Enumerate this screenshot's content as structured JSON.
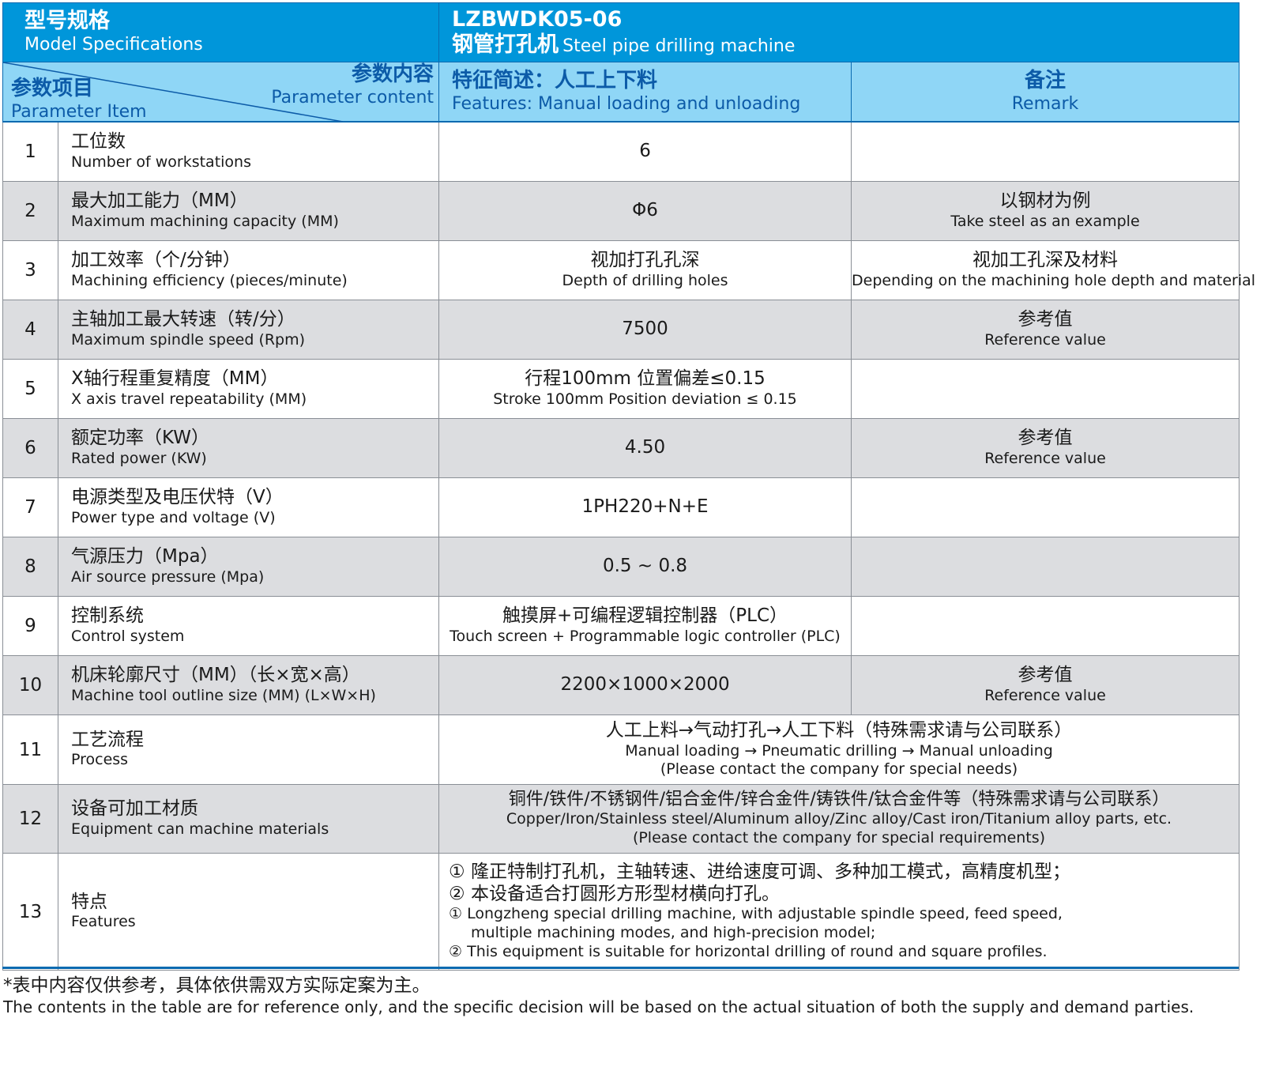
{
  "header": {
    "model_cn": "型号规格",
    "model_en": "Model Specifications",
    "code": "LZBWDK05-06",
    "name_cn": "钢管打孔机",
    "name_en": "Steel pipe drilling machine",
    "content_cn": "参数内容",
    "content_en": "Parameter content",
    "item_cn": "参数项目",
    "item_en": "Parameter Item",
    "features_cn": "特征简述：人工上下料",
    "features_en": "Features: Manual loading and unloading",
    "remark_cn": "备注",
    "remark_en": "Remark"
  },
  "rows": [
    {
      "no": "1",
      "cn": "工位数",
      "en": "Number of workstations",
      "value": "6",
      "value_en": "",
      "remark_cn": "",
      "remark_en": ""
    },
    {
      "no": "2",
      "cn": "最大加工能力（MM）",
      "en": "Maximum machining capacity (MM)",
      "value": "Φ6",
      "value_en": "",
      "remark_cn": "以钢材为例",
      "remark_en": "Take steel as an example"
    },
    {
      "no": "3",
      "cn": "加工效率（个/分钟）",
      "en": "Machining efficiency (pieces/minute)",
      "value": "视加打孔孔深",
      "value_en": "Depth of drilling holes",
      "remark_cn": "视加工孔深及材料",
      "remark_en": "Depending on the machining hole depth and material"
    },
    {
      "no": "4",
      "cn": "主轴加工最大转速（转/分）",
      "en": "Maximum spindle speed (Rpm)",
      "value": "7500",
      "value_en": "",
      "remark_cn": "参考值",
      "remark_en": "Reference value"
    },
    {
      "no": "5",
      "cn": "X轴行程重复精度（MM）",
      "en": "X axis travel repeatability (MM)",
      "value": "行程100mm 位置偏差≤0.15",
      "value_en": "Stroke 100mm Position deviation ≤ 0.15",
      "remark_cn": "",
      "remark_en": ""
    },
    {
      "no": "6",
      "cn": "额定功率（KW）",
      "en": "Rated power (KW)",
      "value": "4.50",
      "value_en": "",
      "remark_cn": "参考值",
      "remark_en": "Reference value"
    },
    {
      "no": "7",
      "cn": "电源类型及电压伏特（V）",
      "en": "Power type and voltage (V)",
      "value": "1PH220+N+E",
      "value_en": "",
      "remark_cn": "",
      "remark_en": ""
    },
    {
      "no": "8",
      "cn": "气源压力（Mpa）",
      "en": "Air source pressure (Mpa)",
      "value": "0.5 ~ 0.8",
      "value_en": "",
      "remark_cn": "",
      "remark_en": ""
    },
    {
      "no": "9",
      "cn": "控制系统",
      "en": "Control system",
      "value": "触摸屏+可编程逻辑控制器（PLC）",
      "value_en": "Touch screen + Programmable logic controller (PLC)",
      "remark_cn": "",
      "remark_en": ""
    },
    {
      "no": "10",
      "cn": "机床轮廓尺寸（MM）（长×宽×高）",
      "en": "Machine tool outline size (MM) (L×W×H)",
      "value": "2200×1000×2000",
      "value_en": "",
      "remark_cn": "参考值",
      "remark_en": "Reference value"
    }
  ],
  "row11": {
    "no": "11",
    "cn": "工艺流程",
    "en": "Process",
    "value_cn": "人工上料→气动打孔→人工下料（特殊需求请与公司联系）",
    "value_en1": "Manual loading → Pneumatic drilling → Manual unloading",
    "value_en2": "(Please contact the company for special needs)"
  },
  "row12": {
    "no": "12",
    "cn": "设备可加工材质",
    "en": "Equipment can machine materials",
    "value_cn": "铜件/铁件/不锈钢件/铝合金件/锌合金件/铸铁件/钛合金件等（特殊需求请与公司联系）",
    "value_en1": "Copper/Iron/Stainless steel/Aluminum alloy/Zinc alloy/Cast iron/Titanium alloy parts, etc.",
    "value_en2": "(Please contact the company for special requirements)"
  },
  "row13": {
    "no": "13",
    "cn": "特点",
    "en": "Features",
    "lines_cn": [
      "① 隆正特制打孔机，主轴转速、进给速度可调、多种加工模式，高精度机型；",
      "② 本设备适合打圆形方形型材横向打孔。"
    ],
    "lines_en": [
      "① Longzheng special drilling machine, with adjustable spindle speed, feed speed,",
      "multiple machining modes, and high-precision model;",
      "② This equipment is suitable for horizontal drilling of round and square profiles."
    ]
  },
  "footer": {
    "cn": "*表中内容仅供参考，具体依供需双方实际定案为主。",
    "en": "The contents in the table are for reference only, and the specific decision will be based on the actual situation of both the supply and demand parties."
  },
  "colors": {
    "header": "#0096da",
    "subheader": "#8fd6f6",
    "subheader_text": "#0c5ba8",
    "grey_row": "#dcdde0"
  }
}
